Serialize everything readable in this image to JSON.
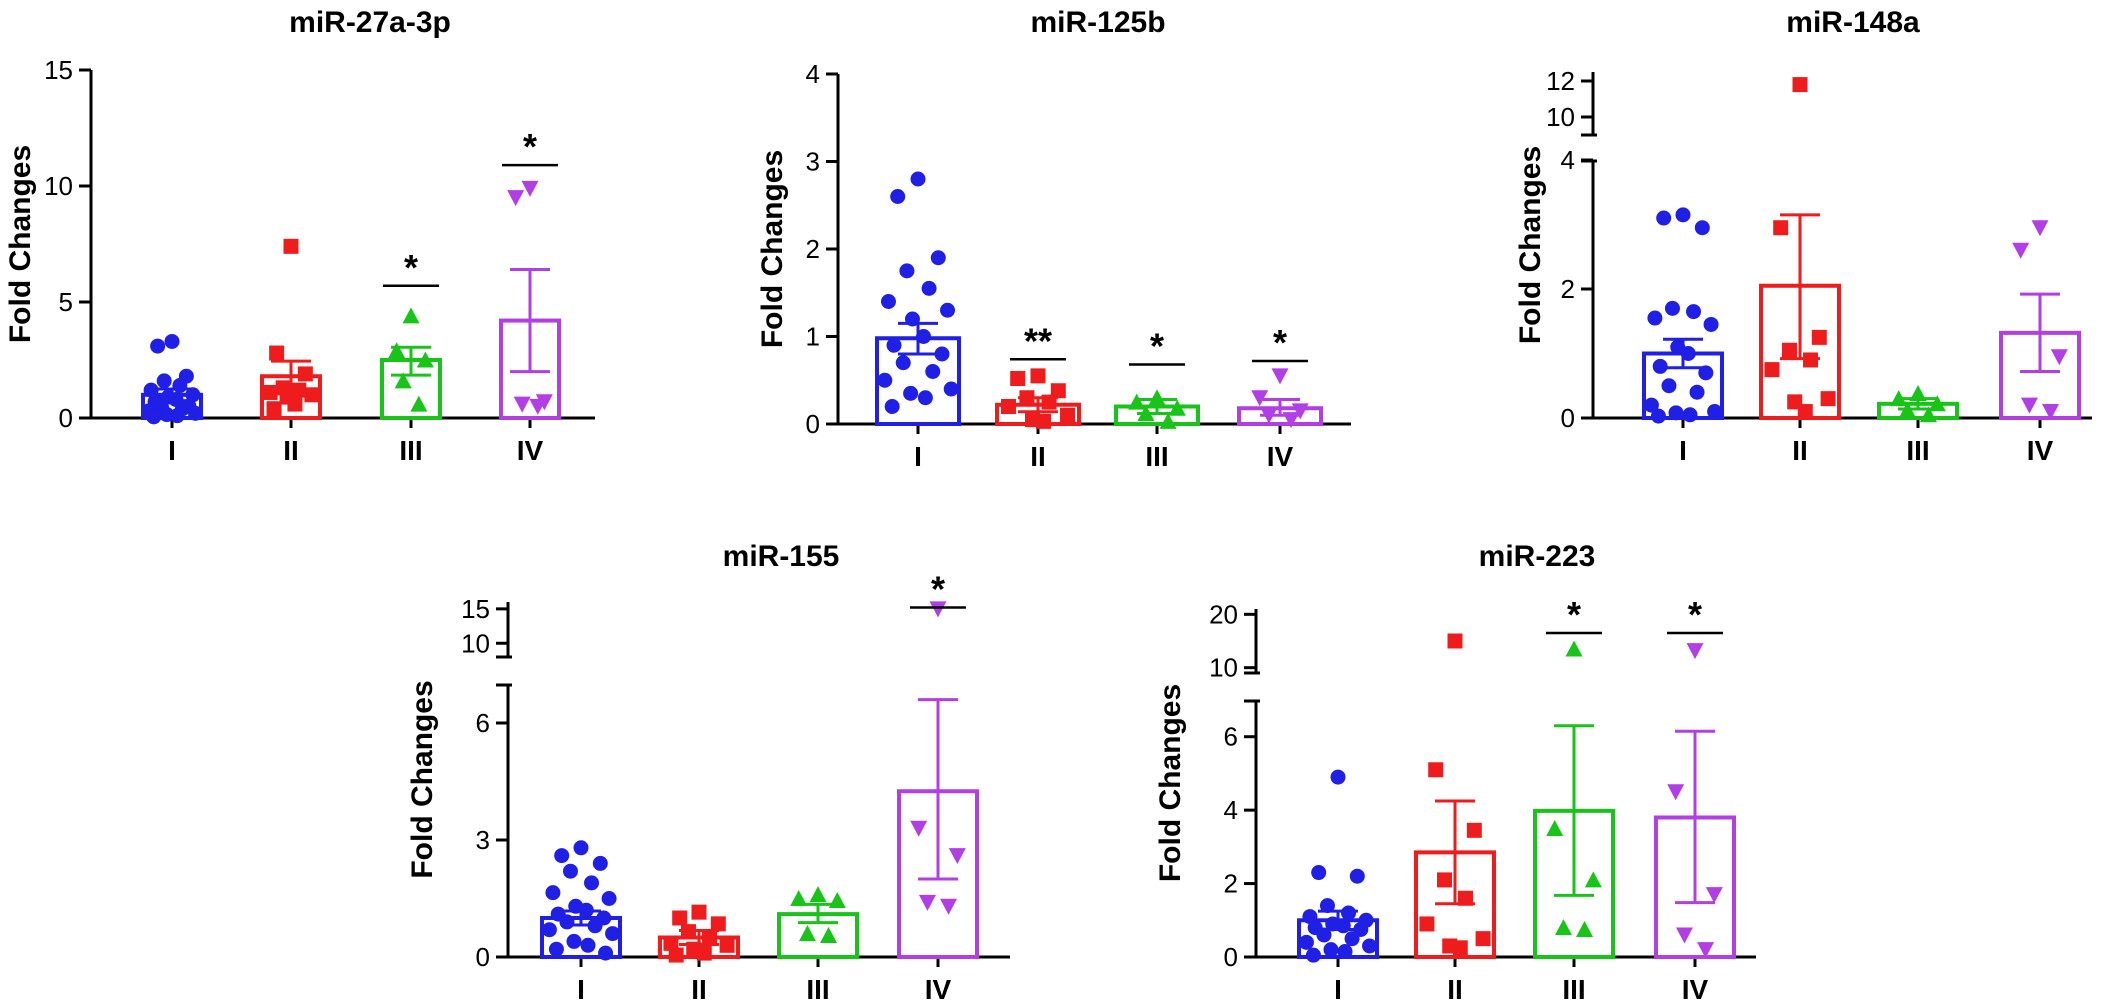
{
  "chart_data": [
    {
      "type": "bar",
      "title": "miR-27a-3p",
      "ylabel": "Fold  Changes",
      "categories": [
        "I",
        "II",
        "III",
        "IV"
      ],
      "ylim": [
        0,
        15
      ],
      "yticks": [
        "0",
        "5",
        "10",
        "15"
      ],
      "ytick_values": [
        0,
        5,
        10,
        15
      ],
      "series": [
        {
          "category": "I",
          "color": "#1f1fe6",
          "marker": "circle",
          "mean": 1.0,
          "sem_upper": 1.25,
          "sem_lower": 0.75,
          "points": [
            3.3,
            3.1,
            1.8,
            1.6,
            1.4,
            1.2,
            1.0,
            0.9,
            0.8,
            0.7,
            0.5,
            0.45,
            0.4,
            0.3,
            0.2,
            0.15,
            0.1,
            0.05
          ]
        },
        {
          "category": "II",
          "color": "#ee1c1c",
          "marker": "square",
          "mean": 1.8,
          "sem_upper": 2.45,
          "sem_lower": 1.2,
          "points": [
            7.4,
            2.8,
            1.9,
            1.3,
            1.2,
            1.1,
            1.0,
            0.9,
            0.6,
            0.4
          ]
        },
        {
          "category": "III",
          "color": "#19c419",
          "marker": "triangle-up",
          "mean": 2.5,
          "sem_upper": 3.05,
          "sem_lower": 1.85,
          "points": [
            4.4,
            2.9,
            2.5,
            1.6,
            0.6
          ],
          "significance": "*",
          "sig_level": 5.7
        },
        {
          "category": "IV",
          "color": "#b23ee6",
          "marker": "triangle-down",
          "mean": 4.2,
          "sem_upper": 6.4,
          "sem_lower": 2.0,
          "points": [
            9.9,
            9.5,
            0.7,
            0.6,
            0.5
          ],
          "significance": "*",
          "sig_level": 10.9
        }
      ]
    },
    {
      "type": "bar",
      "title": "miR-125b",
      "ylabel": "Fold  Changes",
      "categories": [
        "I",
        "II",
        "III",
        "IV"
      ],
      "ylim": [
        0,
        4
      ],
      "yticks": [
        "0",
        "1",
        "2",
        "3",
        "4"
      ],
      "ytick_values": [
        0,
        1,
        2,
        3,
        4
      ],
      "series": [
        {
          "category": "I",
          "color": "#1f1fe6",
          "marker": "circle",
          "mean": 0.98,
          "sem_upper": 1.15,
          "sem_lower": 0.8,
          "points": [
            2.8,
            2.6,
            1.9,
            1.75,
            1.55,
            1.4,
            1.3,
            1.2,
            1.0,
            0.9,
            0.8,
            0.7,
            0.6,
            0.5,
            0.4,
            0.35,
            0.3,
            0.2
          ]
        },
        {
          "category": "II",
          "color": "#ee1c1c",
          "marker": "square",
          "mean": 0.22,
          "sem_upper": 0.3,
          "sem_lower": 0.14,
          "points": [
            0.55,
            0.52,
            0.38,
            0.3,
            0.25,
            0.2,
            0.1,
            0.05,
            0.03
          ],
          "significance": "**",
          "sig_level": 0.74
        },
        {
          "category": "III",
          "color": "#19c419",
          "marker": "triangle-up",
          "mean": 0.2,
          "sem_upper": 0.28,
          "sem_lower": 0.12,
          "points": [
            0.3,
            0.25,
            0.18,
            0.12,
            0.03
          ],
          "significance": "*",
          "sig_level": 0.68
        },
        {
          "category": "IV",
          "color": "#b23ee6",
          "marker": "triangle-down",
          "mean": 0.18,
          "sem_upper": 0.28,
          "sem_lower": 0.1,
          "points": [
            0.55,
            0.3,
            0.15,
            0.1,
            0.05
          ],
          "significance": "*",
          "sig_level": 0.72
        }
      ]
    },
    {
      "type": "bar",
      "title": "miR-148a",
      "ylabel": "Fold  Changes",
      "categories": [
        "I",
        "II",
        "III",
        "IV"
      ],
      "axis_break": true,
      "ylim": [
        0,
        4
      ],
      "ylim_upper": [
        9,
        12.5
      ],
      "yticks": [
        "0",
        "2",
        "4"
      ],
      "ytick_values": [
        0,
        2,
        4
      ],
      "yticks_upper": [
        "10",
        "12"
      ],
      "ytick_values_upper": [
        10,
        12
      ],
      "series": [
        {
          "category": "I",
          "color": "#1f1fe6",
          "marker": "circle",
          "mean": 1.0,
          "sem_upper": 1.22,
          "sem_lower": 0.78,
          "points": [
            3.15,
            3.1,
            2.95,
            1.7,
            1.65,
            1.55,
            1.45,
            1.1,
            1.0,
            0.8,
            0.7,
            0.5,
            0.4,
            0.2,
            0.1,
            0.08,
            0.05,
            0.03
          ]
        },
        {
          "category": "II",
          "color": "#ee1c1c",
          "marker": "square",
          "mean": 2.05,
          "sem_upper": 3.15,
          "sem_lower": 0.92,
          "points": [
            11.8,
            2.95,
            1.25,
            1.05,
            0.9,
            0.75,
            0.3,
            0.25,
            0.1
          ]
        },
        {
          "category": "III",
          "color": "#19c419",
          "marker": "triangle-up",
          "mean": 0.22,
          "sem_upper": 0.3,
          "sem_lower": 0.14,
          "points": [
            0.38,
            0.3,
            0.22,
            0.12,
            0.05
          ]
        },
        {
          "category": "IV",
          "color": "#b23ee6",
          "marker": "triangle-down",
          "mean": 1.32,
          "sem_upper": 1.92,
          "sem_lower": 0.72,
          "points": [
            2.95,
            2.6,
            0.95,
            0.2,
            0.1
          ]
        }
      ]
    },
    {
      "type": "bar",
      "title": "miR-155",
      "ylabel": "Fold  Changes",
      "categories": [
        "I",
        "II",
        "III",
        "IV"
      ],
      "axis_break": true,
      "ylim": [
        0,
        7
      ],
      "ylim_upper": [
        8,
        16
      ],
      "yticks": [
        "0",
        "3",
        "6"
      ],
      "ytick_values": [
        0,
        3,
        6
      ],
      "yticks_upper": [
        "10",
        "15"
      ],
      "ytick_values_upper": [
        10,
        15
      ],
      "series": [
        {
          "category": "I",
          "color": "#1f1fe6",
          "marker": "circle",
          "mean": 1.0,
          "sem_upper": 1.18,
          "sem_lower": 0.82,
          "points": [
            2.8,
            2.6,
            2.4,
            2.2,
            1.9,
            1.65,
            1.5,
            1.3,
            1.2,
            1.1,
            1.0,
            0.9,
            0.8,
            0.7,
            0.6,
            0.4,
            0.3,
            0.2,
            0.1
          ]
        },
        {
          "category": "II",
          "color": "#ee1c1c",
          "marker": "square",
          "mean": 0.5,
          "sem_upper": 0.68,
          "sem_lower": 0.32,
          "points": [
            1.15,
            1.0,
            0.85,
            0.65,
            0.5,
            0.35,
            0.3,
            0.2,
            0.1,
            0.05
          ]
        },
        {
          "category": "III",
          "color": "#19c419",
          "marker": "triangle-up",
          "mean": 1.1,
          "sem_upper": 1.35,
          "sem_lower": 0.88,
          "points": [
            1.6,
            1.5,
            1.45,
            0.6,
            0.55
          ]
        },
        {
          "category": "IV",
          "color": "#b23ee6",
          "marker": "triangle-down",
          "mean": 4.25,
          "sem_upper": 6.6,
          "sem_lower": 2.0,
          "points": [
            15.0,
            3.3,
            2.6,
            1.4,
            1.3
          ],
          "significance": "*",
          "sig_level": 15.2
        }
      ]
    },
    {
      "type": "bar",
      "title": "miR-223",
      "ylabel": "Fold  Changes",
      "categories": [
        "I",
        "II",
        "III",
        "IV"
      ],
      "axis_break": true,
      "ylim": [
        0,
        7
      ],
      "ylim_upper": [
        9,
        21
      ],
      "yticks": [
        "0",
        "2",
        "4",
        "6"
      ],
      "ytick_values": [
        0,
        2,
        4,
        6
      ],
      "yticks_upper": [
        "10",
        "20"
      ],
      "ytick_values_upper": [
        10,
        20
      ],
      "series": [
        {
          "category": "I",
          "color": "#1f1fe6",
          "marker": "circle",
          "mean": 1.0,
          "sem_upper": 1.25,
          "sem_lower": 0.75,
          "points": [
            4.9,
            2.3,
            2.2,
            1.4,
            1.2,
            1.1,
            1.0,
            0.9,
            0.85,
            0.8,
            0.75,
            0.6,
            0.5,
            0.4,
            0.3,
            0.2,
            0.15,
            0.05
          ]
        },
        {
          "category": "II",
          "color": "#ee1c1c",
          "marker": "square",
          "mean": 2.85,
          "sem_upper": 4.25,
          "sem_lower": 1.45,
          "points": [
            15.0,
            5.1,
            3.45,
            2.1,
            1.6,
            0.9,
            0.5,
            0.3,
            0.25
          ]
        },
        {
          "category": "III",
          "color": "#19c419",
          "marker": "triangle-up",
          "mean": 3.98,
          "sem_upper": 6.3,
          "sem_lower": 1.68,
          "points": [
            13.5,
            3.5,
            2.1,
            0.8,
            0.75
          ],
          "significance": "*",
          "sig_level": 16.5
        },
        {
          "category": "IV",
          "color": "#b23ee6",
          "marker": "triangle-down",
          "mean": 3.8,
          "sem_upper": 6.15,
          "sem_lower": 1.48,
          "points": [
            13.2,
            4.5,
            1.7,
            0.6,
            0.2
          ],
          "significance": "*",
          "sig_level": 16.5
        }
      ]
    }
  ]
}
